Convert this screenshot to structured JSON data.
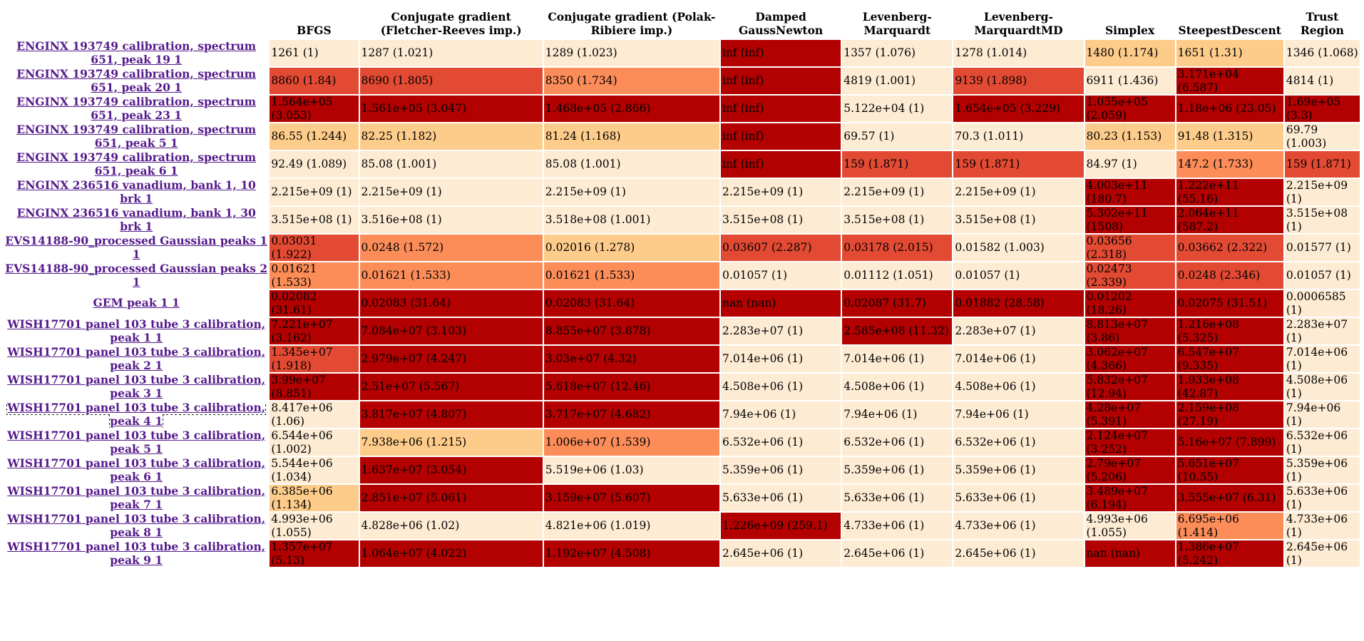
{
  "colors": {
    "c1": "#fdebd3",
    "c2": "#fdcc8a",
    "c3": "#fc8d59",
    "c4": "#e34a33",
    "c5": "#b30000",
    "link": "#551a8b"
  },
  "headers": [
    "BFGS",
    "Conjugate gradient (Fletcher-Reeves imp.)",
    "Conjugate gradient (Polak-Ribiere imp.)",
    "Damped GaussNewton",
    "Levenberg-Marquardt",
    "Levenberg-MarquardtMD",
    "Simplex",
    "SteepestDescent",
    "Trust Region"
  ],
  "rows": [
    {
      "label": "ENGINX 193749 calibration, spectrum 651, peak 19 1",
      "cells": [
        {
          "v": "1261 (1)",
          "c": 1
        },
        {
          "v": "1287 (1.021)",
          "c": 1
        },
        {
          "v": "1289 (1.023)",
          "c": 1
        },
        {
          "v": "inf (inf)",
          "c": 5
        },
        {
          "v": "1357 (1.076)",
          "c": 1
        },
        {
          "v": "1278 (1.014)",
          "c": 1
        },
        {
          "v": "1480 (1.174)",
          "c": 2
        },
        {
          "v": "1651 (1.31)",
          "c": 2
        },
        {
          "v": "1346 (1.068)",
          "c": 1
        }
      ]
    },
    {
      "label": "ENGINX 193749 calibration, spectrum 651, peak 20 1",
      "cells": [
        {
          "v": "8860 (1.84)",
          "c": 4
        },
        {
          "v": "8690 (1.805)",
          "c": 4
        },
        {
          "v": "8350 (1.734)",
          "c": 3
        },
        {
          "v": "inf (inf)",
          "c": 5
        },
        {
          "v": "4819 (1.001)",
          "c": 1
        },
        {
          "v": "9139 (1.898)",
          "c": 4
        },
        {
          "v": "6911 (1.436)",
          "c": 1
        },
        {
          "v": "3.171e+04 (6.587)",
          "c": 5
        },
        {
          "v": "4814 (1)",
          "c": 1
        }
      ]
    },
    {
      "label": "ENGINX 193749 calibration, spectrum 651, peak 23 1",
      "cells": [
        {
          "v": "1.564e+05 (3.053)",
          "c": 5
        },
        {
          "v": "1.561e+05 (3.047)",
          "c": 5
        },
        {
          "v": "1.468e+05 (2.866)",
          "c": 5
        },
        {
          "v": "inf (inf)",
          "c": 5
        },
        {
          "v": "5.122e+04 (1)",
          "c": 1
        },
        {
          "v": "1.654e+05 (3.229)",
          "c": 5
        },
        {
          "v": "1.055e+05 (2.059)",
          "c": 5
        },
        {
          "v": "1.18e+06 (23.05)",
          "c": 5
        },
        {
          "v": "1.69e+05 (3.3)",
          "c": 5
        }
      ]
    },
    {
      "label": "ENGINX 193749 calibration, spectrum 651, peak 5 1",
      "cells": [
        {
          "v": "86.55 (1.244)",
          "c": 2
        },
        {
          "v": "82.25 (1.182)",
          "c": 2
        },
        {
          "v": "81.24 (1.168)",
          "c": 2
        },
        {
          "v": "inf (inf)",
          "c": 5
        },
        {
          "v": "69.57 (1)",
          "c": 1
        },
        {
          "v": "70.3 (1.011)",
          "c": 1
        },
        {
          "v": "80.23 (1.153)",
          "c": 2
        },
        {
          "v": "91.48 (1.315)",
          "c": 2
        },
        {
          "v": "69.79 (1.003)",
          "c": 1
        }
      ]
    },
    {
      "label": "ENGINX 193749 calibration, spectrum 651, peak 6 1",
      "cells": [
        {
          "v": "92.49 (1.089)",
          "c": 1
        },
        {
          "v": "85.08 (1.001)",
          "c": 1
        },
        {
          "v": "85.08 (1.001)",
          "c": 1
        },
        {
          "v": "inf (inf)",
          "c": 5
        },
        {
          "v": "159 (1.871)",
          "c": 4
        },
        {
          "v": "159 (1.871)",
          "c": 4
        },
        {
          "v": "84.97 (1)",
          "c": 1
        },
        {
          "v": "147.2 (1.733)",
          "c": 3
        },
        {
          "v": "159 (1.871)",
          "c": 4
        }
      ]
    },
    {
      "label": "ENGINX 236516 vanadium, bank 1, 10 brk 1",
      "cells": [
        {
          "v": "2.215e+09 (1)",
          "c": 1
        },
        {
          "v": "2.215e+09 (1)",
          "c": 1
        },
        {
          "v": "2.215e+09 (1)",
          "c": 1
        },
        {
          "v": "2.215e+09 (1)",
          "c": 1
        },
        {
          "v": "2.215e+09 (1)",
          "c": 1
        },
        {
          "v": "2.215e+09 (1)",
          "c": 1
        },
        {
          "v": "4.003e+11 (180.7)",
          "c": 5
        },
        {
          "v": "1.222e+11 (55.16)",
          "c": 5
        },
        {
          "v": "2.215e+09 (1)",
          "c": 1
        }
      ]
    },
    {
      "label": "ENGINX 236516 vanadium, bank 1, 30 brk 1",
      "cells": [
        {
          "v": "3.515e+08 (1)",
          "c": 1
        },
        {
          "v": "3.516e+08 (1)",
          "c": 1
        },
        {
          "v": "3.518e+08 (1.001)",
          "c": 1
        },
        {
          "v": "3.515e+08 (1)",
          "c": 1
        },
        {
          "v": "3.515e+08 (1)",
          "c": 1
        },
        {
          "v": "3.515e+08 (1)",
          "c": 1
        },
        {
          "v": "5.302e+11 (1508)",
          "c": 5
        },
        {
          "v": "2.064e+11 (587.2)",
          "c": 5
        },
        {
          "v": "3.515e+08 (1)",
          "c": 1
        }
      ]
    },
    {
      "label": "EVS14188-90_processed Gaussian peaks 1 1",
      "cells": [
        {
          "v": "0.03031 (1.922)",
          "c": 4
        },
        {
          "v": "0.0248 (1.572)",
          "c": 3
        },
        {
          "v": "0.02016 (1.278)",
          "c": 2
        },
        {
          "v": "0.03607 (2.287)",
          "c": 4
        },
        {
          "v": "0.03178 (2.015)",
          "c": 4
        },
        {
          "v": "0.01582 (1.003)",
          "c": 1
        },
        {
          "v": "0.03656 (2.318)",
          "c": 4
        },
        {
          "v": "0.03662 (2.322)",
          "c": 4
        },
        {
          "v": "0.01577 (1)",
          "c": 1
        }
      ]
    },
    {
      "label": "EVS14188-90_processed Gaussian peaks 2 1",
      "cells": [
        {
          "v": "0.01621 (1.533)",
          "c": 3
        },
        {
          "v": "0.01621 (1.533)",
          "c": 3
        },
        {
          "v": "0.01621 (1.533)",
          "c": 3
        },
        {
          "v": "0.01057 (1)",
          "c": 1
        },
        {
          "v": "0.01112 (1.051)",
          "c": 1
        },
        {
          "v": "0.01057 (1)",
          "c": 1
        },
        {
          "v": "0.02473 (2.339)",
          "c": 4
        },
        {
          "v": "0.0248 (2.346)",
          "c": 4
        },
        {
          "v": "0.01057 (1)",
          "c": 1
        }
      ]
    },
    {
      "label": "GEM peak 1 1",
      "cells": [
        {
          "v": "0.02082 (31.61)",
          "c": 5
        },
        {
          "v": "0.02083 (31.64)",
          "c": 5
        },
        {
          "v": "0.02083 (31.64)",
          "c": 5
        },
        {
          "v": "nan (nan)",
          "c": 5
        },
        {
          "v": "0.02087 (31.7)",
          "c": 5
        },
        {
          "v": "0.01882 (28.58)",
          "c": 5
        },
        {
          "v": "0.01202 (18.26)",
          "c": 5
        },
        {
          "v": "0.02075 (31.51)",
          "c": 5
        },
        {
          "v": "0.0006585 (1)",
          "c": 1
        }
      ]
    },
    {
      "label": "WISH17701 panel 103 tube 3 calibration, peak 1 1",
      "cells": [
        {
          "v": "7.221e+07 (3.162)",
          "c": 5
        },
        {
          "v": "7.084e+07 (3.103)",
          "c": 5
        },
        {
          "v": "8.855e+07 (3.878)",
          "c": 5
        },
        {
          "v": "2.283e+07 (1)",
          "c": 1
        },
        {
          "v": "2.585e+08 (11.32)",
          "c": 5
        },
        {
          "v": "2.283e+07 (1)",
          "c": 1
        },
        {
          "v": "8.813e+07 (3.86)",
          "c": 5
        },
        {
          "v": "1.216e+08 (5.325)",
          "c": 5
        },
        {
          "v": "2.283e+07 (1)",
          "c": 1
        }
      ]
    },
    {
      "label": "WISH17701 panel 103 tube 3 calibration, peak 2 1",
      "cells": [
        {
          "v": "1.345e+07 (1.918)",
          "c": 4
        },
        {
          "v": "2.979e+07 (4.247)",
          "c": 5
        },
        {
          "v": "3.03e+07 (4.32)",
          "c": 5
        },
        {
          "v": "7.014e+06 (1)",
          "c": 1
        },
        {
          "v": "7.014e+06 (1)",
          "c": 1
        },
        {
          "v": "7.014e+06 (1)",
          "c": 1
        },
        {
          "v": "3.062e+07 (4.366)",
          "c": 5
        },
        {
          "v": "6.547e+07 (9.335)",
          "c": 5
        },
        {
          "v": "7.014e+06 (1)",
          "c": 1
        }
      ]
    },
    {
      "label": "WISH17701 panel 103 tube 3 calibration, peak 3 1",
      "cells": [
        {
          "v": "3.99e+07 (8.851)",
          "c": 5
        },
        {
          "v": "2.51e+07 (5.567)",
          "c": 5
        },
        {
          "v": "5.618e+07 (12.46)",
          "c": 5
        },
        {
          "v": "4.508e+06 (1)",
          "c": 1
        },
        {
          "v": "4.508e+06 (1)",
          "c": 1
        },
        {
          "v": "4.508e+06 (1)",
          "c": 1
        },
        {
          "v": "5.832e+07 (12.94)",
          "c": 5
        },
        {
          "v": "1.933e+08 (42.87)",
          "c": 5
        },
        {
          "v": "4.508e+06 (1)",
          "c": 1
        }
      ]
    },
    {
      "label": "WISH17701 panel 103 tube 3 calibration, peak 4 1",
      "focused": true,
      "cells": [
        {
          "v": "8.417e+06 (1.06)",
          "c": 1
        },
        {
          "v": "3.817e+07 (4.807)",
          "c": 5
        },
        {
          "v": "3.717e+07 (4.682)",
          "c": 5
        },
        {
          "v": "7.94e+06 (1)",
          "c": 1
        },
        {
          "v": "7.94e+06 (1)",
          "c": 1
        },
        {
          "v": "7.94e+06 (1)",
          "c": 1
        },
        {
          "v": "4.28e+07 (5.391)",
          "c": 5
        },
        {
          "v": "2.159e+08 (27.19)",
          "c": 5
        },
        {
          "v": "7.94e+06 (1)",
          "c": 1
        }
      ]
    },
    {
      "label": "WISH17701 panel 103 tube 3 calibration, peak 5 1",
      "cells": [
        {
          "v": "6.544e+06 (1.002)",
          "c": 1
        },
        {
          "v": "7.938e+06 (1.215)",
          "c": 2
        },
        {
          "v": "1.006e+07 (1.539)",
          "c": 3
        },
        {
          "v": "6.532e+06 (1)",
          "c": 1
        },
        {
          "v": "6.532e+06 (1)",
          "c": 1
        },
        {
          "v": "6.532e+06 (1)",
          "c": 1
        },
        {
          "v": "2.124e+07 (3.252)",
          "c": 5
        },
        {
          "v": "5.16e+07 (7.899)",
          "c": 5
        },
        {
          "v": "6.532e+06 (1)",
          "c": 1
        }
      ]
    },
    {
      "label": "WISH17701 panel 103 tube 3 calibration, peak 6 1",
      "cells": [
        {
          "v": "5.544e+06 (1.034)",
          "c": 1
        },
        {
          "v": "1.637e+07 (3.054)",
          "c": 5
        },
        {
          "v": "5.519e+06 (1.03)",
          "c": 1
        },
        {
          "v": "5.359e+06 (1)",
          "c": 1
        },
        {
          "v": "5.359e+06 (1)",
          "c": 1
        },
        {
          "v": "5.359e+06 (1)",
          "c": 1
        },
        {
          "v": "2.79e+07 (5.206)",
          "c": 5
        },
        {
          "v": "5.651e+07 (10.55)",
          "c": 5
        },
        {
          "v": "5.359e+06 (1)",
          "c": 1
        }
      ]
    },
    {
      "label": "WISH17701 panel 103 tube 3 calibration, peak 7 1",
      "cells": [
        {
          "v": "6.385e+06 (1.134)",
          "c": 2
        },
        {
          "v": "2.851e+07 (5.061)",
          "c": 5
        },
        {
          "v": "3.159e+07 (5.607)",
          "c": 5
        },
        {
          "v": "5.633e+06 (1)",
          "c": 1
        },
        {
          "v": "5.633e+06 (1)",
          "c": 1
        },
        {
          "v": "5.633e+06 (1)",
          "c": 1
        },
        {
          "v": "3.489e+07 (6.194)",
          "c": 5
        },
        {
          "v": "3.555e+07 (6.31)",
          "c": 5
        },
        {
          "v": "5.633e+06 (1)",
          "c": 1
        }
      ]
    },
    {
      "label": "WISH17701 panel 103 tube 3 calibration, peak 8 1",
      "cells": [
        {
          "v": "4.993e+06 (1.055)",
          "c": 1
        },
        {
          "v": "4.828e+06 (1.02)",
          "c": 1
        },
        {
          "v": "4.821e+06 (1.019)",
          "c": 1
        },
        {
          "v": "1.226e+09 (259.1)",
          "c": 5
        },
        {
          "v": "4.733e+06 (1)",
          "c": 1
        },
        {
          "v": "4.733e+06 (1)",
          "c": 1
        },
        {
          "v": "4.993e+06 (1.055)",
          "c": 1
        },
        {
          "v": "6.695e+06 (1.414)",
          "c": 3
        },
        {
          "v": "4.733e+06 (1)",
          "c": 1
        }
      ]
    },
    {
      "label": "WISH17701 panel 103 tube 3 calibration, peak 9 1",
      "cells": [
        {
          "v": "1.357e+07 (5.13)",
          "c": 5
        },
        {
          "v": "1.064e+07 (4.022)",
          "c": 5
        },
        {
          "v": "1.192e+07 (4.508)",
          "c": 5
        },
        {
          "v": "2.645e+06 (1)",
          "c": 1
        },
        {
          "v": "2.645e+06 (1)",
          "c": 1
        },
        {
          "v": "2.645e+06 (1)",
          "c": 1
        },
        {
          "v": "nan (nan)",
          "c": 5
        },
        {
          "v": "1.386e+07 (5.242)",
          "c": 5
        },
        {
          "v": "2.645e+06 (1)",
          "c": 1
        }
      ]
    }
  ]
}
